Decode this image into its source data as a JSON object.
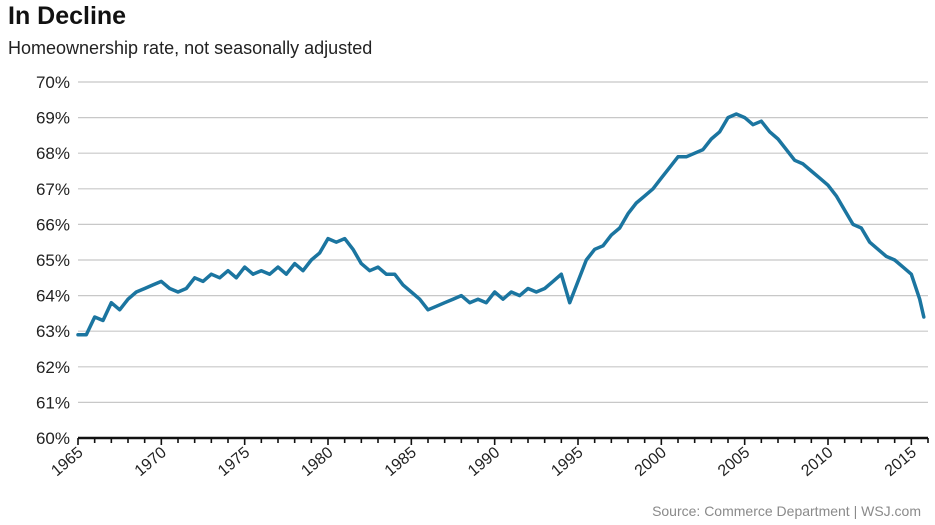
{
  "title": "In Decline",
  "subtitle": "Homeownership rate, not seasonally adjusted",
  "source": "Source: Commerce Department  |  WSJ.com",
  "colors": {
    "line": "#1b75a0",
    "grid": "#c8c8c8",
    "axis": "#111111"
  },
  "chart_data": {
    "type": "line",
    "title": "In Decline",
    "subtitle": "Homeownership rate, not seasonally adjusted",
    "xlabel": "",
    "ylabel": "",
    "xlim": [
      1965,
      2016
    ],
    "ylim": [
      60,
      70
    ],
    "grid": true,
    "x_ticks": [
      "1965",
      "1970",
      "1975",
      "1980",
      "1985",
      "1990",
      "1995",
      "2000",
      "2005",
      "2010",
      "2015"
    ],
    "y_ticks": [
      "60%",
      "61%",
      "62%",
      "63%",
      "64%",
      "65%",
      "66%",
      "67%",
      "68%",
      "69%",
      "70%"
    ],
    "series": [
      {
        "x": [
          1965.0,
          1965.5,
          1966.0,
          1966.5,
          1967.0,
          1967.5,
          1968.0,
          1968.5,
          1969.0,
          1969.5,
          1970.0,
          1970.5,
          1971.0,
          1971.5,
          1972.0,
          1972.5,
          1973.0,
          1973.5,
          1974.0,
          1974.5,
          1975.0,
          1975.5,
          1976.0,
          1976.5,
          1977.0,
          1977.5,
          1978.0,
          1978.5,
          1979.0,
          1979.5,
          1980.0,
          1980.5,
          1981.0,
          1981.5,
          1982.0,
          1982.5,
          1983.0,
          1983.5,
          1984.0,
          1984.5,
          1985.0,
          1985.5,
          1986.0,
          1986.5,
          1987.0,
          1987.5,
          1988.0,
          1988.5,
          1989.0,
          1989.5,
          1990.0,
          1990.5,
          1991.0,
          1991.5,
          1992.0,
          1992.5,
          1993.0,
          1993.5,
          1994.0,
          1994.5,
          1995.0,
          1995.5,
          1996.0,
          1996.5,
          1997.0,
          1997.5,
          1998.0,
          1998.5,
          1999.0,
          1999.5,
          2000.0,
          2000.5,
          2001.0,
          2001.5,
          2002.0,
          2002.5,
          2003.0,
          2003.5,
          2004.0,
          2004.5,
          2005.0,
          2005.5,
          2006.0,
          2006.5,
          2007.0,
          2007.5,
          2008.0,
          2008.5,
          2009.0,
          2009.5,
          2010.0,
          2010.5,
          2011.0,
          2011.5,
          2012.0,
          2012.5,
          2013.0,
          2013.5,
          2014.0,
          2014.5,
          2015.0,
          2015.5,
          2015.75
        ],
        "values": [
          62.9,
          62.9,
          63.4,
          63.3,
          63.8,
          63.6,
          63.9,
          64.1,
          64.2,
          64.3,
          64.4,
          64.2,
          64.1,
          64.2,
          64.5,
          64.4,
          64.6,
          64.5,
          64.7,
          64.5,
          64.8,
          64.6,
          64.7,
          64.6,
          64.8,
          64.6,
          64.9,
          64.7,
          65.0,
          65.2,
          65.6,
          65.5,
          65.6,
          65.3,
          64.9,
          64.7,
          64.8,
          64.6,
          64.6,
          64.3,
          64.1,
          63.9,
          63.6,
          63.7,
          63.8,
          63.9,
          64.0,
          63.8,
          63.9,
          63.8,
          64.1,
          63.9,
          64.1,
          64.0,
          64.2,
          64.1,
          64.2,
          64.4,
          64.6,
          63.8,
          64.4,
          65.0,
          65.3,
          65.4,
          65.7,
          65.9,
          66.3,
          66.6,
          66.8,
          67.0,
          67.3,
          67.6,
          67.9,
          67.9,
          68.0,
          68.1,
          68.4,
          68.6,
          69.0,
          69.1,
          69.0,
          68.8,
          68.9,
          68.6,
          68.4,
          68.1,
          67.8,
          67.7,
          67.5,
          67.3,
          67.1,
          66.8,
          66.4,
          66.0,
          65.9,
          65.5,
          65.3,
          65.1,
          65.0,
          64.8,
          64.6,
          63.9,
          63.4
        ]
      }
    ]
  }
}
